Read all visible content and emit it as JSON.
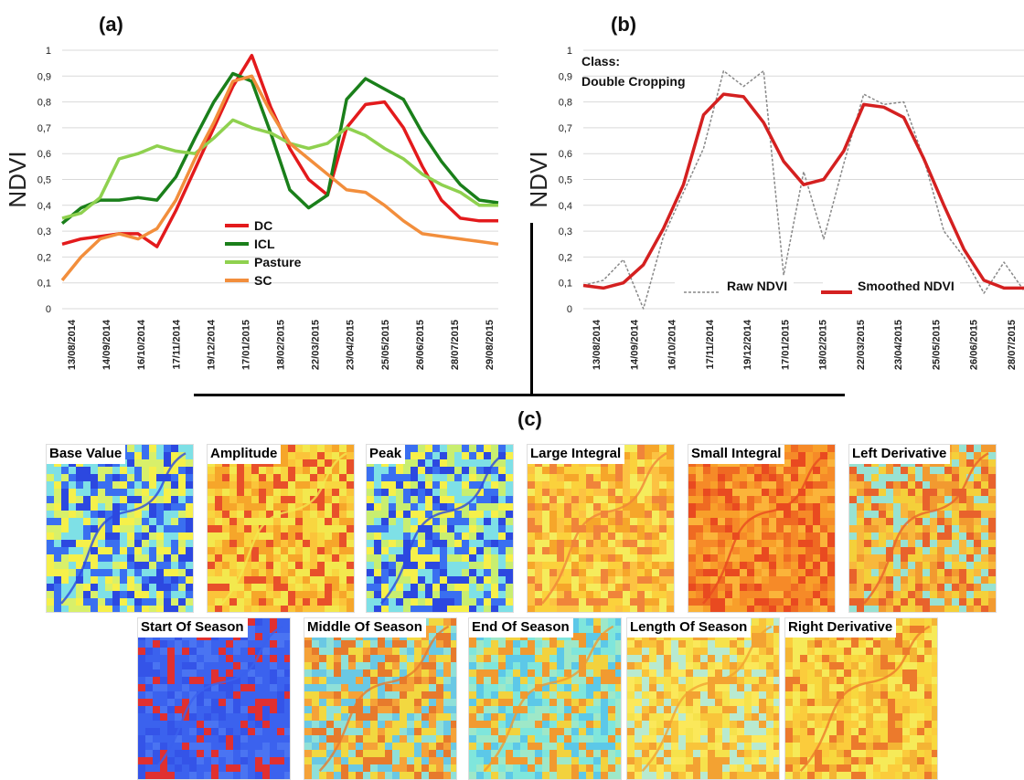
{
  "panels": {
    "a": "(a)",
    "b": "(b)",
    "c": "(c)"
  },
  "chart_data": [
    {
      "type": "line",
      "id": "a",
      "ylabel": "NDVI",
      "ylim": [
        0,
        1
      ],
      "yticks": [
        "0",
        "0,1",
        "0,2",
        "0,3",
        "0,4",
        "0,5",
        "0,6",
        "0,7",
        "0,8",
        "0,9",
        "1"
      ],
      "xticks": [
        "13/08/2014",
        "14/09/2014",
        "16/10/2014",
        "17/11/2014",
        "19/12/2014",
        "17/01/2015",
        "18/02/2015",
        "22/03/2015",
        "23/04/2015",
        "25/05/2015",
        "26/06/2015",
        "28/07/2015",
        "29/08/2015"
      ],
      "grid": true,
      "legend_position": "center",
      "series": [
        {
          "name": "DC",
          "color": "#e31a1c",
          "values": [
            0.25,
            0.27,
            0.28,
            0.29,
            0.29,
            0.24,
            0.38,
            0.54,
            0.7,
            0.86,
            0.98,
            0.78,
            0.62,
            0.5,
            0.44,
            0.7,
            0.79,
            0.8,
            0.7,
            0.55,
            0.42,
            0.35,
            0.34,
            0.34
          ]
        },
        {
          "name": "ICL",
          "color": "#1a7f1a",
          "values": [
            0.33,
            0.39,
            0.42,
            0.42,
            0.43,
            0.42,
            0.51,
            0.66,
            0.8,
            0.91,
            0.88,
            0.68,
            0.46,
            0.39,
            0.44,
            0.81,
            0.89,
            0.85,
            0.81,
            0.68,
            0.57,
            0.48,
            0.42,
            0.41
          ]
        },
        {
          "name": "Pasture",
          "color": "#8fd14f",
          "values": [
            0.35,
            0.37,
            0.43,
            0.58,
            0.6,
            0.63,
            0.61,
            0.6,
            0.66,
            0.73,
            0.7,
            0.68,
            0.64,
            0.62,
            0.64,
            0.7,
            0.67,
            0.62,
            0.58,
            0.52,
            0.48,
            0.45,
            0.4,
            0.4
          ]
        },
        {
          "name": "SC",
          "color": "#f28e3c",
          "values": [
            0.11,
            0.2,
            0.27,
            0.29,
            0.27,
            0.31,
            0.42,
            0.58,
            0.72,
            0.88,
            0.9,
            0.76,
            0.64,
            0.58,
            0.52,
            0.46,
            0.45,
            0.4,
            0.34,
            0.29,
            0.28,
            0.27,
            0.26,
            0.25
          ]
        }
      ]
    },
    {
      "type": "line",
      "id": "b",
      "ylabel": "NDVI",
      "annotation": [
        "Class:",
        "Double Cropping"
      ],
      "ylim": [
        0,
        1
      ],
      "yticks": [
        "0",
        "0,1",
        "0,2",
        "0,3",
        "0,4",
        "0,5",
        "0,6",
        "0,7",
        "0,8",
        "0,9",
        "1"
      ],
      "xticks": [
        "13/08/2014",
        "14/09/2014",
        "16/10/2014",
        "17/11/2014",
        "19/12/2014",
        "17/01/2015",
        "18/02/2015",
        "22/03/2015",
        "23/04/2015",
        "25/05/2015",
        "26/06/2015",
        "28/07/2015"
      ],
      "grid": true,
      "legend_position": "bottom",
      "series": [
        {
          "name": "Raw NDVI",
          "color": "#888888",
          "dash": true,
          "values": [
            0.09,
            0.11,
            0.19,
            0.0,
            0.28,
            0.45,
            0.62,
            0.92,
            0.86,
            0.92,
            0.13,
            0.53,
            0.27,
            0.56,
            0.83,
            0.79,
            0.8,
            0.58,
            0.3,
            0.2,
            0.06,
            0.18,
            0.07
          ]
        },
        {
          "name": "Smoothed NDVI",
          "color": "#d42020",
          "values": [
            0.09,
            0.08,
            0.1,
            0.17,
            0.31,
            0.48,
            0.75,
            0.83,
            0.82,
            0.72,
            0.57,
            0.48,
            0.5,
            0.61,
            0.79,
            0.78,
            0.74,
            0.58,
            0.4,
            0.23,
            0.11,
            0.08,
            0.08
          ]
        }
      ]
    }
  ],
  "maps": {
    "row1": [
      {
        "label": "Base Value",
        "colors": [
          "#3a6ff0",
          "#7ee0e6",
          "#f6f04a",
          "#2c48e0",
          "#d8f06a"
        ]
      },
      {
        "label": "Amplitude",
        "colors": [
          "#f8d640",
          "#f6a62a",
          "#e8502a",
          "#f3e84e",
          "#fbc43a"
        ]
      },
      {
        "label": "Peak",
        "colors": [
          "#3a6ff0",
          "#7ee0e6",
          "#f6f04a",
          "#2c48e0",
          "#c8ee70"
        ]
      },
      {
        "label": "Large Integral",
        "colors": [
          "#fbd13c",
          "#f6a62a",
          "#f5ec5c",
          "#f0843a",
          "#fcc242"
        ]
      },
      {
        "label": "Small Integral",
        "colors": [
          "#f68a28",
          "#ef6a22",
          "#fbb43a",
          "#e94a20",
          "#f89f2a"
        ]
      },
      {
        "label": "Left Derivative",
        "colors": [
          "#f4d03a",
          "#f29a30",
          "#98e2d2",
          "#e8622c",
          "#f8b83c"
        ]
      }
    ],
    "row2": [
      {
        "label": "Start Of Season",
        "colors": [
          "#3b62ee",
          "#3454e8",
          "#4a74f2",
          "#3b62ee",
          "#e03030"
        ]
      },
      {
        "label": "Middle Of Season",
        "colors": [
          "#f5a238",
          "#8fe0d8",
          "#f2d840",
          "#e77a2c",
          "#6ac8e4"
        ]
      },
      {
        "label": "End Of Season",
        "colors": [
          "#7fe6dc",
          "#f2d23e",
          "#5cc8e8",
          "#f19a30",
          "#9ee8c8"
        ]
      },
      {
        "label": "Length Of Season",
        "colors": [
          "#f6e24c",
          "#f9c43a",
          "#b8ead0",
          "#f3a232",
          "#fbe85a"
        ]
      },
      {
        "label": "Right Derivative",
        "colors": [
          "#f8d83e",
          "#f4b434",
          "#f6ea58",
          "#ec7a2c",
          "#fbcc3c"
        ]
      }
    ]
  }
}
